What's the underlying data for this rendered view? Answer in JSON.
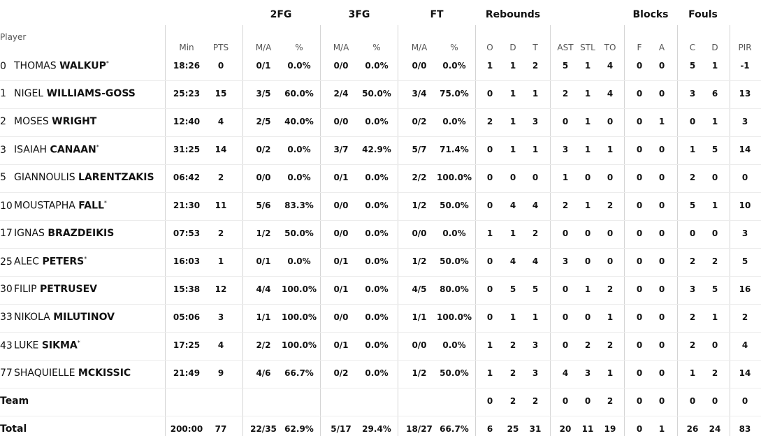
{
  "table": {
    "player_header": "Player",
    "groups": [
      {
        "label": "2FG",
        "center": 402
      },
      {
        "label": "3FG",
        "center": 514
      },
      {
        "label": "FT",
        "center": 625
      },
      {
        "label": "Rebounds",
        "center": 734
      },
      {
        "label": "Blocks",
        "center": 931
      },
      {
        "label": "Fouls",
        "center": 1006
      }
    ],
    "columns": [
      "Min",
      "PTS",
      "M/A",
      "%",
      "M/A",
      "%",
      "M/A",
      "%",
      "O",
      "D",
      "T",
      "AST",
      "STL",
      "TO",
      "F",
      "A",
      "C",
      "D",
      "PIR"
    ],
    "rows": [
      {
        "number": "0",
        "first": "THOMAS",
        "last": "WALKUP",
        "starter": "*",
        "stats": [
          "18:26",
          "0",
          "0/1",
          "0.0%",
          "0/0",
          "0.0%",
          "0/0",
          "0.0%",
          "1",
          "1",
          "2",
          "5",
          "1",
          "4",
          "0",
          "0",
          "5",
          "1",
          "-1"
        ]
      },
      {
        "number": "1",
        "first": "NIGEL",
        "last": "WILLIAMS-GOSS",
        "stats": [
          "25:23",
          "15",
          "3/5",
          "60.0%",
          "2/4",
          "50.0%",
          "3/4",
          "75.0%",
          "0",
          "1",
          "1",
          "2",
          "1",
          "4",
          "0",
          "0",
          "3",
          "6",
          "13"
        ]
      },
      {
        "number": "2",
        "first": "MOSES",
        "last": "WRIGHT",
        "stats": [
          "12:40",
          "4",
          "2/5",
          "40.0%",
          "0/0",
          "0.0%",
          "0/2",
          "0.0%",
          "2",
          "1",
          "3",
          "0",
          "1",
          "0",
          "0",
          "1",
          "0",
          "1",
          "3"
        ]
      },
      {
        "number": "3",
        "first": "ISAIAH",
        "last": "CANAAN",
        "starter": "*",
        "stats": [
          "31:25",
          "14",
          "0/2",
          "0.0%",
          "3/7",
          "42.9%",
          "5/7",
          "71.4%",
          "0",
          "1",
          "1",
          "3",
          "1",
          "1",
          "0",
          "0",
          "1",
          "5",
          "14"
        ]
      },
      {
        "number": "5",
        "first": "GIANNOULIS",
        "last": "LARENTZAKIS",
        "stats": [
          "06:42",
          "2",
          "0/0",
          "0.0%",
          "0/1",
          "0.0%",
          "2/2",
          "100.0%",
          "0",
          "0",
          "0",
          "1",
          "0",
          "0",
          "0",
          "0",
          "2",
          "0",
          "0"
        ]
      },
      {
        "number": "10",
        "first": "MOUSTAPHA",
        "last": "FALL",
        "starter": "*",
        "stats": [
          "21:30",
          "11",
          "5/6",
          "83.3%",
          "0/0",
          "0.0%",
          "1/2",
          "50.0%",
          "0",
          "4",
          "4",
          "2",
          "1",
          "2",
          "0",
          "0",
          "5",
          "1",
          "10"
        ]
      },
      {
        "number": "17",
        "first": "IGNAS",
        "last": "BRAZDEIKIS",
        "stats": [
          "07:53",
          "2",
          "1/2",
          "50.0%",
          "0/0",
          "0.0%",
          "0/0",
          "0.0%",
          "1",
          "1",
          "2",
          "0",
          "0",
          "0",
          "0",
          "0",
          "0",
          "0",
          "3"
        ]
      },
      {
        "number": "25",
        "first": "ALEC",
        "last": "PETERS",
        "starter": "*",
        "stats": [
          "16:03",
          "1",
          "0/1",
          "0.0%",
          "0/1",
          "0.0%",
          "1/2",
          "50.0%",
          "0",
          "4",
          "4",
          "3",
          "0",
          "0",
          "0",
          "0",
          "2",
          "2",
          "5"
        ]
      },
      {
        "number": "30",
        "first": "FILIP",
        "last": "PETRUSEV",
        "stats": [
          "15:38",
          "12",
          "4/4",
          "100.0%",
          "0/1",
          "0.0%",
          "4/5",
          "80.0%",
          "0",
          "5",
          "5",
          "0",
          "1",
          "2",
          "0",
          "0",
          "3",
          "5",
          "16"
        ]
      },
      {
        "number": "33",
        "first": "NIKOLA",
        "last": "MILUTINOV",
        "stats": [
          "05:06",
          "3",
          "1/1",
          "100.0%",
          "0/0",
          "0.0%",
          "1/1",
          "100.0%",
          "0",
          "1",
          "1",
          "0",
          "0",
          "1",
          "0",
          "0",
          "2",
          "1",
          "2"
        ]
      },
      {
        "number": "43",
        "first": "LUKE",
        "last": "SIKMA",
        "starter": "*",
        "stats": [
          "17:25",
          "4",
          "2/2",
          "100.0%",
          "0/1",
          "0.0%",
          "0/0",
          "0.0%",
          "1",
          "2",
          "3",
          "0",
          "2",
          "2",
          "0",
          "0",
          "2",
          "0",
          "4"
        ]
      },
      {
        "number": "77",
        "first": "SHAQUIELLE",
        "last": "MCKISSIC",
        "stats": [
          "21:49",
          "9",
          "4/6",
          "66.7%",
          "0/2",
          "0.0%",
          "1/2",
          "50.0%",
          "1",
          "2",
          "3",
          "4",
          "3",
          "1",
          "0",
          "0",
          "1",
          "2",
          "14"
        ]
      },
      {
        "label": "Team",
        "stats": [
          null,
          null,
          null,
          null,
          null,
          null,
          null,
          null,
          "0",
          "2",
          "2",
          "0",
          "0",
          "2",
          "0",
          "0",
          "0",
          "0",
          "0"
        ]
      },
      {
        "label": "Total",
        "stats": [
          "200:00",
          "77",
          "22/35",
          "62.9%",
          "5/17",
          "29.4%",
          "18/27",
          "66.7%",
          "6",
          "25",
          "31",
          "20",
          "11",
          "19",
          "0",
          "1",
          "26",
          "24",
          "83"
        ]
      }
    ]
  }
}
